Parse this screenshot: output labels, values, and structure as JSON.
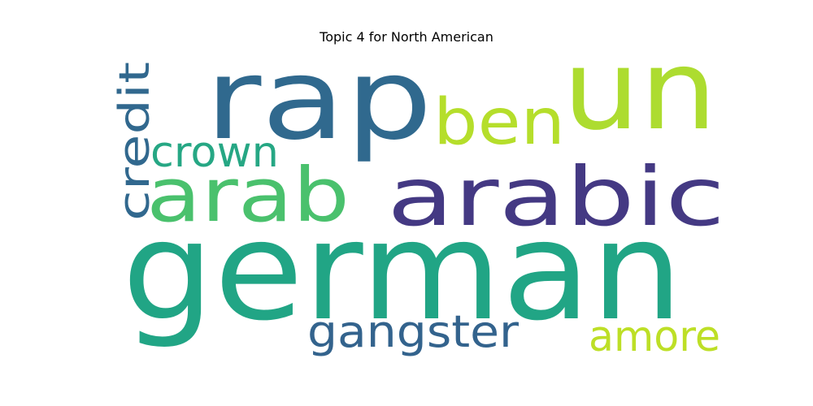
{
  "title": "Topic 4 for North American",
  "words": [
    {
      "text": "german",
      "color": "#21a585"
    },
    {
      "text": "rap",
      "color": "#30698e"
    },
    {
      "text": "un",
      "color": "#addc30"
    },
    {
      "text": "arabic",
      "color": "#443983"
    },
    {
      "text": "arab",
      "color": "#4ac16d"
    },
    {
      "text": "ben",
      "color": "#b5de2b"
    },
    {
      "text": "gangster",
      "color": "#33638d"
    },
    {
      "text": "crown",
      "color": "#26a784"
    },
    {
      "text": "credit",
      "color": "#31688e"
    },
    {
      "text": "amore",
      "color": "#bddf26"
    }
  ]
}
